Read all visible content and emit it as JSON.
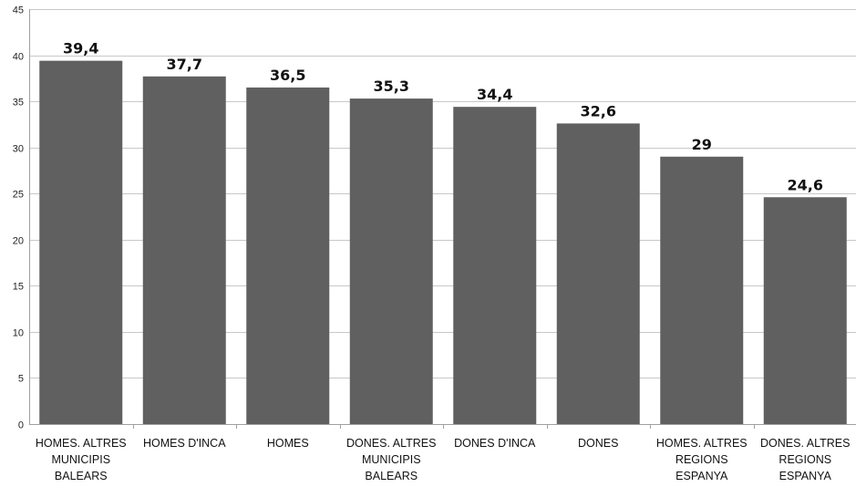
{
  "chart_data": {
    "type": "bar",
    "title": "",
    "xlabel": "",
    "ylabel": "",
    "categories": [
      [
        "HOMES. ALTRES",
        "MUNICIPIS",
        "BALEARS"
      ],
      [
        "HOMES D'INCA"
      ],
      [
        "HOMES"
      ],
      [
        "DONES. ALTRES",
        "MUNICIPIS",
        "BALEARS"
      ],
      [
        "DONES D'INCA"
      ],
      [
        "DONES"
      ],
      [
        "HOMES. ALTRES",
        "REGIONS",
        "ESPANYA"
      ],
      [
        "DONES. ALTRES",
        "REGIONS",
        "ESPANYA"
      ]
    ],
    "values": [
      39.4,
      37.7,
      36.5,
      35.3,
      34.4,
      32.6,
      29,
      24.6
    ],
    "value_labels": [
      "39,4",
      "37,7",
      "36,5",
      "35,3",
      "34,4",
      "32,6",
      "29",
      "24,6"
    ],
    "ylim": [
      0,
      45
    ],
    "yticks": [
      0,
      5,
      10,
      15,
      20,
      25,
      30,
      35,
      40,
      45
    ],
    "grid": true,
    "legend": "none",
    "colors": {
      "bar": "#606060",
      "grid": "#c8c8c8",
      "axis": "#a0a0a0"
    }
  }
}
